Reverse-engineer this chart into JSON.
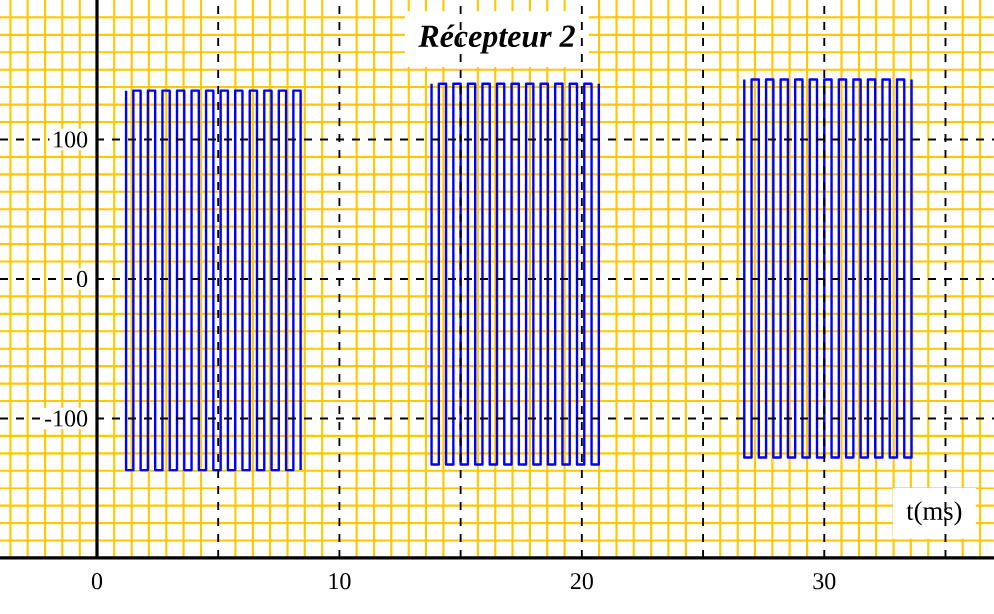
{
  "chart_data": {
    "type": "line",
    "title": "Récepteur 2",
    "xlabel": "t(ms)",
    "xlim": [
      -4,
      37
    ],
    "ylim": [
      -200,
      200
    ],
    "xticks": [
      0,
      {
        "value": 5,
        "label": null
      },
      10,
      {
        "value": 15,
        "label": null
      },
      20,
      {
        "value": 25,
        "label": null
      },
      30,
      {
        "value": 35,
        "label": null
      }
    ],
    "yticks": [
      -100,
      0,
      100
    ],
    "grid": true,
    "ref_lines": [
      {
        "axis": "x",
        "value": -3.57,
        "color": "#ffc800"
      },
      {
        "axis": "x",
        "value": -2.86,
        "color": "#ffc800"
      },
      {
        "axis": "x",
        "value": -2.14,
        "color": "#ffc800"
      },
      {
        "axis": "x",
        "value": -1.43,
        "color": "#ffc800"
      },
      {
        "axis": "x",
        "value": -0.71,
        "color": "#ffc800"
      },
      {
        "axis": "x",
        "value": 0.71,
        "color": "#ffc800"
      },
      {
        "axis": "x",
        "value": 1.43,
        "color": "#ffc800"
      },
      {
        "axis": "x",
        "value": 2.14,
        "color": "#ffc800"
      },
      {
        "axis": "x",
        "value": 2.86,
        "color": "#ffc800"
      },
      {
        "axis": "x",
        "value": 3.57,
        "color": "#ffc800"
      },
      {
        "axis": "x",
        "value": 4.29,
        "color": "#ffc800"
      },
      {
        "axis": "x",
        "value": 5.71,
        "color": "#ffc800"
      },
      {
        "axis": "x",
        "value": 6.43,
        "color": "#ffc800"
      },
      {
        "axis": "x",
        "value": 7.14,
        "color": "#ffc800"
      },
      {
        "axis": "x",
        "value": 7.86,
        "color": "#ffc800"
      },
      {
        "axis": "x",
        "value": 8.57,
        "color": "#ffc800"
      },
      {
        "axis": "x",
        "value": 9.29,
        "color": "#ffc800"
      },
      {
        "axis": "x",
        "value": 10.71,
        "color": "#ffc800"
      },
      {
        "axis": "x",
        "value": 11.43,
        "color": "#ffc800"
      },
      {
        "axis": "x",
        "value": 12.14,
        "color": "#ffc800"
      },
      {
        "axis": "x",
        "value": 12.86,
        "color": "#ffc800"
      },
      {
        "axis": "x",
        "value": 13.57,
        "color": "#ffc800"
      },
      {
        "axis": "x",
        "value": 14.29,
        "color": "#ffc800"
      },
      {
        "axis": "x",
        "value": 15.71,
        "color": "#ffc800"
      },
      {
        "axis": "x",
        "value": 16.43,
        "color": "#ffc800"
      },
      {
        "axis": "x",
        "value": 17.14,
        "color": "#ffc800"
      },
      {
        "axis": "x",
        "value": 17.86,
        "color": "#ffc800"
      },
      {
        "axis": "x",
        "value": 18.57,
        "color": "#ffc800"
      },
      {
        "axis": "x",
        "value": 19.29,
        "color": "#ffc800"
      },
      {
        "axis": "x",
        "value": 20.71,
        "color": "#ffc800"
      },
      {
        "axis": "x",
        "value": 21.43,
        "color": "#ffc800"
      },
      {
        "axis": "x",
        "value": 22.14,
        "color": "#ffc800"
      },
      {
        "axis": "x",
        "value": 22.86,
        "color": "#ffc800"
      },
      {
        "axis": "x",
        "value": 23.57,
        "color": "#ffc800"
      },
      {
        "axis": "x",
        "value": 24.29,
        "color": "#ffc800"
      },
      {
        "axis": "x",
        "value": 25.71,
        "color": "#ffc800"
      },
      {
        "axis": "x",
        "value": 26.43,
        "color": "#ffc800"
      },
      {
        "axis": "x",
        "value": 27.14,
        "color": "#ffc800"
      },
      {
        "axis": "x",
        "value": 27.86,
        "color": "#ffc800"
      },
      {
        "axis": "x",
        "value": 28.57,
        "color": "#ffc800"
      },
      {
        "axis": "x",
        "value": 29.29,
        "color": "#ffc800"
      },
      {
        "axis": "x",
        "value": 30.71,
        "color": "#ffc800"
      },
      {
        "axis": "x",
        "value": 31.43,
        "color": "#ffc800"
      },
      {
        "axis": "x",
        "value": 32.14,
        "color": "#ffc800"
      },
      {
        "axis": "x",
        "value": 32.86,
        "color": "#ffc800"
      },
      {
        "axis": "x",
        "value": 33.57,
        "color": "#ffc800"
      },
      {
        "axis": "x",
        "value": 34.29,
        "color": "#ffc800"
      },
      {
        "axis": "x",
        "value": 35.71,
        "color": "#ffc800"
      },
      {
        "axis": "x",
        "value": 36.43,
        "color": "#ffc800"
      },
      {
        "axis": "y",
        "value": -187.5,
        "color": "#ffc800"
      },
      {
        "axis": "y",
        "value": -175,
        "color": "#ffc800"
      },
      {
        "axis": "y",
        "value": -162.5,
        "color": "#ffc800"
      },
      {
        "axis": "y",
        "value": -150,
        "color": "#ffc800"
      },
      {
        "axis": "y",
        "value": -137.5,
        "color": "#ffc800"
      },
      {
        "axis": "y",
        "value": -125,
        "color": "#ffc800"
      },
      {
        "axis": "y",
        "value": -112.5,
        "color": "#ffc800"
      },
      {
        "axis": "y",
        "value": -87.5,
        "color": "#ffc800"
      },
      {
        "axis": "y",
        "value": -75,
        "color": "#ffc800"
      },
      {
        "axis": "y",
        "value": -62.5,
        "color": "#ffc800"
      },
      {
        "axis": "y",
        "value": -50,
        "color": "#ffc800"
      },
      {
        "axis": "y",
        "value": -37.5,
        "color": "#ffc800"
      },
      {
        "axis": "y",
        "value": -25,
        "color": "#ffc800"
      },
      {
        "axis": "y",
        "value": -12.5,
        "color": "#ffc800"
      },
      {
        "axis": "y",
        "value": 12.5,
        "color": "#ffc800"
      },
      {
        "axis": "y",
        "value": 25,
        "color": "#ffc800"
      },
      {
        "axis": "y",
        "value": 37.5,
        "color": "#ffc800"
      },
      {
        "axis": "y",
        "value": 50,
        "color": "#ffc800"
      },
      {
        "axis": "y",
        "value": 62.5,
        "color": "#ffc800"
      },
      {
        "axis": "y",
        "value": 75,
        "color": "#ffc800"
      },
      {
        "axis": "y",
        "value": 87.5,
        "color": "#ffc800"
      },
      {
        "axis": "y",
        "value": 112.5,
        "color": "#ffc800"
      },
      {
        "axis": "y",
        "value": 125,
        "color": "#ffc800"
      },
      {
        "axis": "y",
        "value": 137.5,
        "color": "#ffc800"
      },
      {
        "axis": "y",
        "value": 150,
        "color": "#ffc800"
      },
      {
        "axis": "y",
        "value": 162.5,
        "color": "#ffc800"
      },
      {
        "axis": "y",
        "value": 175,
        "color": "#ffc800"
      },
      {
        "axis": "y",
        "value": 187.5,
        "color": "#ffc800"
      }
    ],
    "series": [
      {
        "color": "#0000ff",
        "x": [
          1.2,
          1.2,
          1.5,
          1.5,
          1.8,
          1.8,
          2.1,
          2.1,
          2.4,
          2.4,
          2.7,
          2.7,
          3.0,
          3.0,
          3.3,
          3.3,
          3.6,
          3.6,
          3.9,
          3.9,
          4.2,
          4.2,
          4.5,
          4.5,
          4.8,
          4.8,
          5.1,
          5.1,
          5.4,
          5.4,
          5.7,
          5.7,
          6.0,
          6.0,
          6.3,
          6.3,
          6.6,
          6.6,
          6.9,
          6.9,
          7.2,
          7.2,
          7.5,
          7.5,
          7.8,
          7.8,
          8.1,
          8.1,
          8.4,
          8.4
        ],
        "values": [
          135,
          -137,
          -137,
          135,
          135,
          -137,
          -137,
          135,
          135,
          -137,
          -137,
          135,
          135,
          -137,
          -137,
          135,
          135,
          -137,
          -137,
          135,
          135,
          -137,
          -137,
          135,
          135,
          -137,
          -137,
          135,
          135,
          -137,
          -137,
          135,
          135,
          -137,
          -137,
          135,
          135,
          -137,
          -137,
          135,
          135,
          -137,
          -137,
          135,
          135,
          -137,
          -137,
          135,
          135,
          -137
        ]
      },
      {
        "color": "#0000ff",
        "x": [
          13.8,
          13.8,
          14.1,
          14.1,
          14.4,
          14.4,
          14.7,
          14.7,
          15.0,
          15.0,
          15.3,
          15.3,
          15.6,
          15.6,
          15.9,
          15.9,
          16.2,
          16.2,
          16.5,
          16.5,
          16.8,
          16.8,
          17.1,
          17.1,
          17.4,
          17.4,
          17.7,
          17.7,
          18.0,
          18.0,
          18.3,
          18.3,
          18.6,
          18.6,
          18.9,
          18.9,
          19.2,
          19.2,
          19.5,
          19.5,
          19.8,
          19.8,
          20.1,
          20.1,
          20.4,
          20.4,
          20.7,
          20.7
        ],
        "values": [
          140,
          -133,
          -133,
          140,
          140,
          -133,
          -133,
          140,
          140,
          -133,
          -133,
          140,
          140,
          -133,
          -133,
          140,
          140,
          -133,
          -133,
          140,
          140,
          -133,
          -133,
          140,
          140,
          -133,
          -133,
          140,
          140,
          -133,
          -133,
          140,
          140,
          -133,
          -133,
          140,
          140,
          -133,
          -133,
          140,
          140,
          -133,
          -133,
          140,
          140,
          -133,
          -133,
          140
        ]
      },
      {
        "color": "#0000ff",
        "x": [
          26.7,
          26.7,
          27.0,
          27.0,
          27.3,
          27.3,
          27.6,
          27.6,
          27.9,
          27.9,
          28.2,
          28.2,
          28.5,
          28.5,
          28.8,
          28.8,
          29.1,
          29.1,
          29.4,
          29.4,
          29.7,
          29.7,
          30.0,
          30.0,
          30.3,
          30.3,
          30.6,
          30.6,
          30.9,
          30.9,
          31.2,
          31.2,
          31.5,
          31.5,
          31.8,
          31.8,
          32.1,
          32.1,
          32.4,
          32.4,
          32.7,
          32.7,
          33.0,
          33.0,
          33.3,
          33.3,
          33.6,
          33.6
        ],
        "values": [
          143,
          -128,
          -128,
          143,
          143,
          -128,
          -128,
          143,
          143,
          -128,
          -128,
          143,
          143,
          -128,
          -128,
          143,
          143,
          -128,
          -128,
          143,
          143,
          -128,
          -128,
          143,
          143,
          -128,
          -128,
          143,
          143,
          -128,
          -128,
          143,
          143,
          -128,
          -128,
          143,
          143,
          -128,
          -128,
          143,
          143,
          -128,
          -128,
          143,
          143,
          -128,
          -128,
          143
        ]
      }
    ]
  }
}
